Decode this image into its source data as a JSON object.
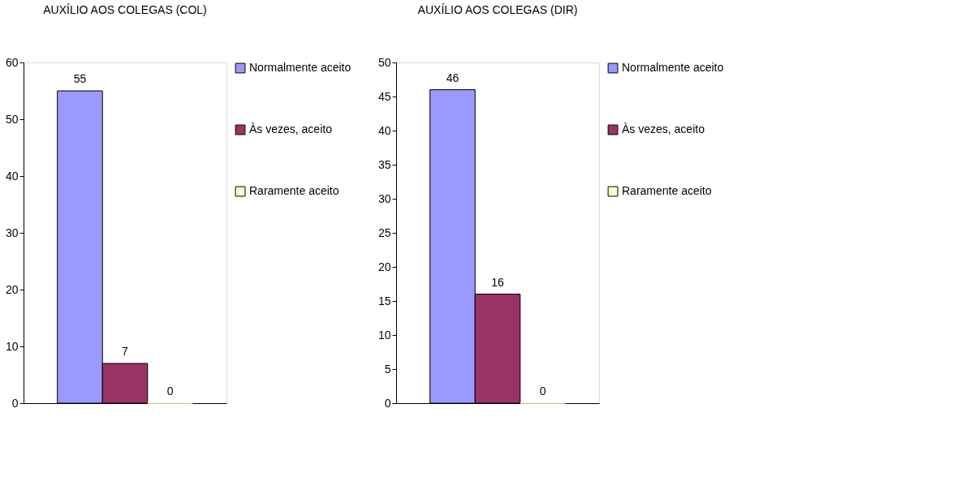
{
  "chart_data": [
    {
      "type": "bar",
      "title": "AUXÍLIO AOS COLEGAS (COL)",
      "categories": [
        null
      ],
      "series": [
        {
          "name": "Normalmente aceito",
          "color": "#9999ff",
          "values": [
            55
          ]
        },
        {
          "name": "Às vezes, aceito",
          "color": "#993366",
          "values": [
            7
          ]
        },
        {
          "name": "Raramente aceito",
          "color": "#ffffcc",
          "values": [
            0
          ]
        }
      ],
      "ylim": [
        0,
        60
      ],
      "yticks": [
        0,
        10,
        20,
        30,
        40,
        50,
        60
      ],
      "data_labels": true,
      "legend": "right",
      "grid": false
    },
    {
      "type": "bar",
      "title": "AUXÍLIO AOS COLEGAS (DIR)",
      "categories": [
        null
      ],
      "series": [
        {
          "name": "Normalmente aceito",
          "color": "#9999ff",
          "values": [
            46
          ]
        },
        {
          "name": "Às vezes, aceito",
          "color": "#993366",
          "values": [
            16
          ]
        },
        {
          "name": "Raramente aceito",
          "color": "#ffffcc",
          "values": [
            0
          ]
        }
      ],
      "ylim": [
        0,
        50
      ],
      "yticks": [
        0,
        5,
        10,
        15,
        20,
        25,
        30,
        35,
        40,
        45,
        50
      ],
      "data_labels": true,
      "legend": "right",
      "grid": false
    }
  ]
}
